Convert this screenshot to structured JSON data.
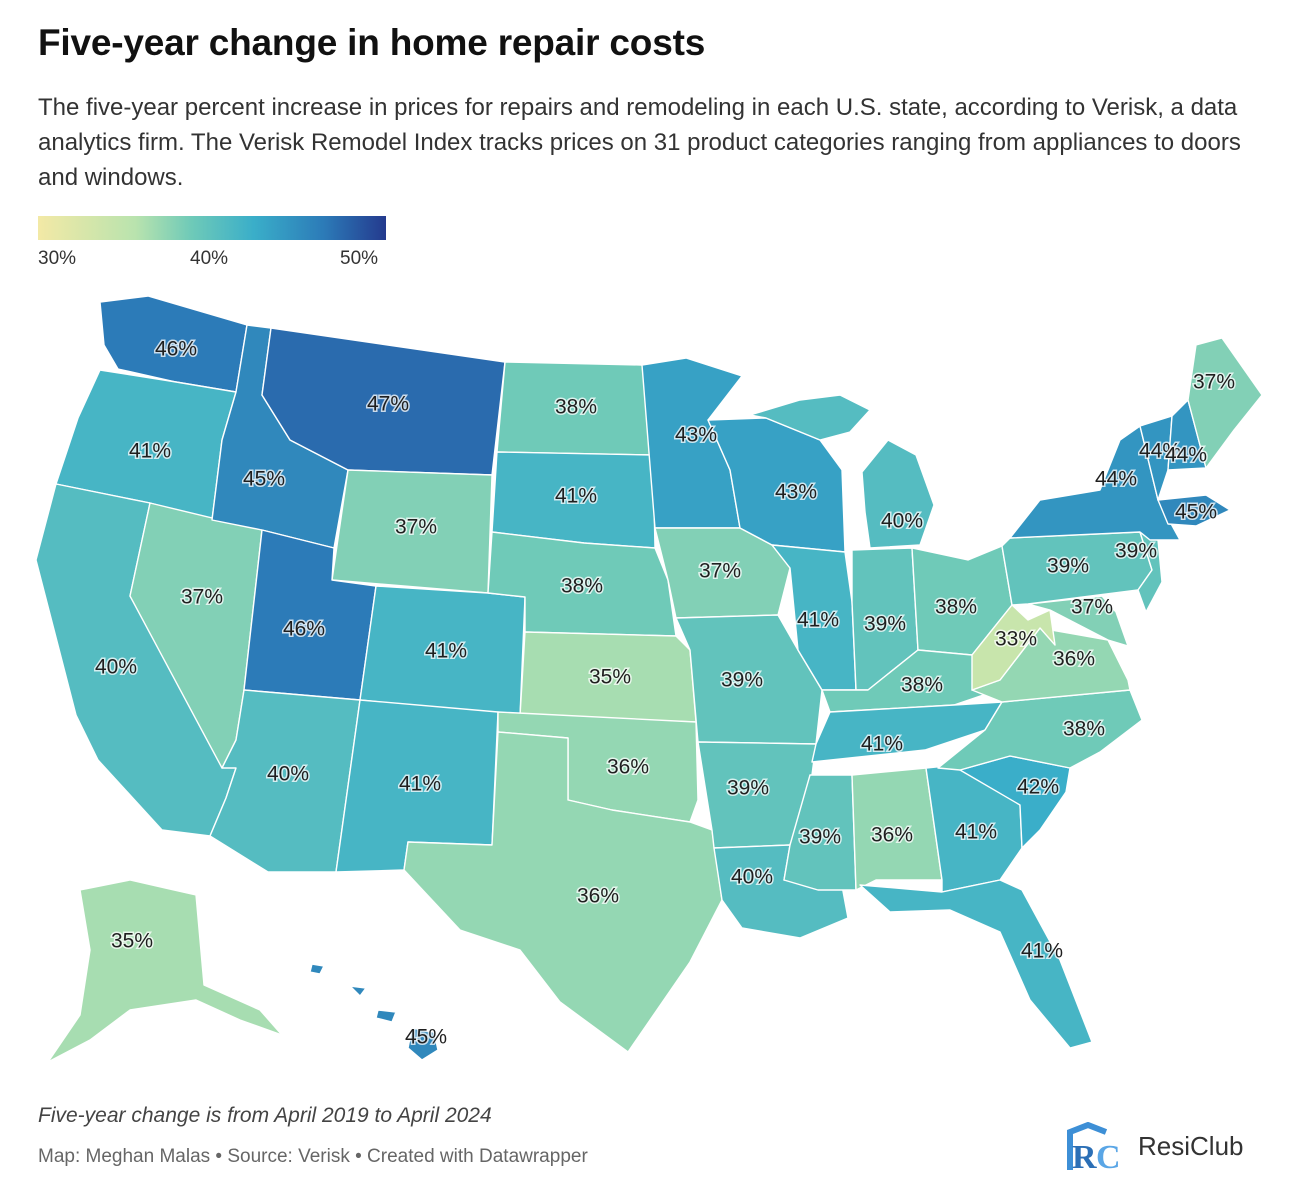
{
  "title": "Five-year change in home repair costs",
  "subtitle": "The five-year percent increase in prices for repairs and remodeling in each U.S. state, according to Verisk, a data analytics firm. The Verisk Remodel Index tracks prices on 31 product categories ranging from appliances to doors and windows.",
  "legend": {
    "min_label": "30%",
    "mid_label": "40%",
    "max_label": "50%",
    "colors": [
      "#f3e9a6",
      "#b9e3ae",
      "#6fcab8",
      "#3aaec9",
      "#2c7bb8",
      "#243a8e"
    ]
  },
  "footnote": "Five-year change is from April 2019 to April 2024",
  "credit": "Map: Meghan Malas • Source: Verisk • Created with Datawrapper",
  "brand": {
    "name": "ResiClub",
    "mark": "RC"
  },
  "chart_data": {
    "type": "choropleth",
    "unit": "%",
    "scale": [
      30,
      50
    ],
    "states": [
      {
        "state": "WA",
        "value": 46,
        "label": "46%"
      },
      {
        "state": "OR",
        "value": 41,
        "label": "41%"
      },
      {
        "state": "CA",
        "value": 40,
        "label": "40%"
      },
      {
        "state": "NV",
        "value": 37,
        "label": "37%"
      },
      {
        "state": "ID",
        "value": 45,
        "label": "45%"
      },
      {
        "state": "MT",
        "value": 47,
        "label": "47%"
      },
      {
        "state": "WY",
        "value": 37,
        "label": "37%"
      },
      {
        "state": "UT",
        "value": 46,
        "label": "46%"
      },
      {
        "state": "CO",
        "value": 41,
        "label": "41%"
      },
      {
        "state": "AZ",
        "value": 40,
        "label": "40%"
      },
      {
        "state": "NM",
        "value": 41,
        "label": "41%"
      },
      {
        "state": "ND",
        "value": 38,
        "label": "38%"
      },
      {
        "state": "SD",
        "value": 41,
        "label": "41%"
      },
      {
        "state": "NE",
        "value": 38,
        "label": "38%"
      },
      {
        "state": "KS",
        "value": 35,
        "label": "35%"
      },
      {
        "state": "OK",
        "value": 36,
        "label": "36%"
      },
      {
        "state": "TX",
        "value": 36,
        "label": "36%"
      },
      {
        "state": "MN",
        "value": 43,
        "label": "43%"
      },
      {
        "state": "IA",
        "value": 37,
        "label": "37%"
      },
      {
        "state": "MO",
        "value": 39,
        "label": "39%"
      },
      {
        "state": "AR",
        "value": 39,
        "label": "39%"
      },
      {
        "state": "LA",
        "value": 40,
        "label": "40%"
      },
      {
        "state": "WI",
        "value": 43,
        "label": "43%"
      },
      {
        "state": "IL",
        "value": 41,
        "label": "41%"
      },
      {
        "state": "MI",
        "value": 40,
        "label": "40%"
      },
      {
        "state": "IN",
        "value": 39,
        "label": "39%"
      },
      {
        "state": "OH",
        "value": 38,
        "label": "38%"
      },
      {
        "state": "KY",
        "value": 38,
        "label": "38%"
      },
      {
        "state": "TN",
        "value": 41,
        "label": "41%"
      },
      {
        "state": "MS",
        "value": 39,
        "label": "39%"
      },
      {
        "state": "AL",
        "value": 36,
        "label": "36%"
      },
      {
        "state": "GA",
        "value": 41,
        "label": "41%"
      },
      {
        "state": "FL",
        "value": 41,
        "label": "41%"
      },
      {
        "state": "SC",
        "value": 42,
        "label": "42%"
      },
      {
        "state": "NC",
        "value": 38,
        "label": "38%"
      },
      {
        "state": "VA",
        "value": 36,
        "label": "36%"
      },
      {
        "state": "WV",
        "value": 33,
        "label": "33%"
      },
      {
        "state": "MD",
        "value": 37,
        "label": "37%"
      },
      {
        "state": "PA",
        "value": 39,
        "label": "39%"
      },
      {
        "state": "NJ",
        "value": 39,
        "label": "39%"
      },
      {
        "state": "NY",
        "value": 44,
        "label": "44%"
      },
      {
        "state": "VT",
        "value": 44,
        "label": "44%"
      },
      {
        "state": "NH",
        "value": 44,
        "label": "44%"
      },
      {
        "state": "MA",
        "value": 45,
        "label": "45%"
      },
      {
        "state": "ME",
        "value": 37,
        "label": "37%"
      },
      {
        "state": "AK",
        "value": 35,
        "label": "35%"
      },
      {
        "state": "HI",
        "value": 45,
        "label": "45%"
      }
    ]
  }
}
